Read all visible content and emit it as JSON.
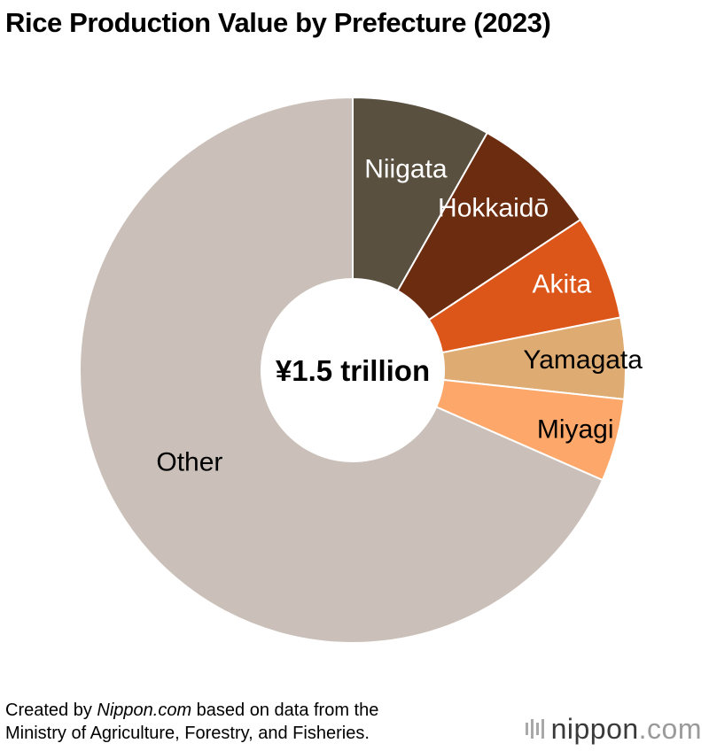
{
  "chart_data": {
    "type": "pie",
    "title": "Rice Production Value by Prefecture (2023)",
    "center_label": "¥1.5 trillion",
    "slices": [
      {
        "label": "Niigata",
        "value": 8.2,
        "color": "#5a5040",
        "label_color": "#ffffff"
      },
      {
        "label": "Hokkaidō",
        "value": 7.5,
        "color": "#6b2c0f",
        "label_color": "#ffffff"
      },
      {
        "label": "Akita",
        "value": 6.2,
        "color": "#dc5519",
        "label_color": "#ffffff"
      },
      {
        "label": "Yamagata",
        "value": 4.8,
        "color": "#deab72",
        "label_color": "#000000"
      },
      {
        "label": "Miyagi",
        "value": 4.9,
        "color": "#fda86a",
        "label_color": "#000000"
      },
      {
        "label": "Other",
        "value": 68.4,
        "color": "#cac0b9",
        "label_color": "#000000"
      }
    ]
  },
  "footer": {
    "line1_prefix": "Created by ",
    "line1_source": "Nippon.com",
    "line1_suffix": " based on data from the",
    "line2": "Ministry of Agriculture, Forestry, and Fisheries."
  },
  "logo": {
    "main": "nippon",
    "suffix": ".com"
  }
}
